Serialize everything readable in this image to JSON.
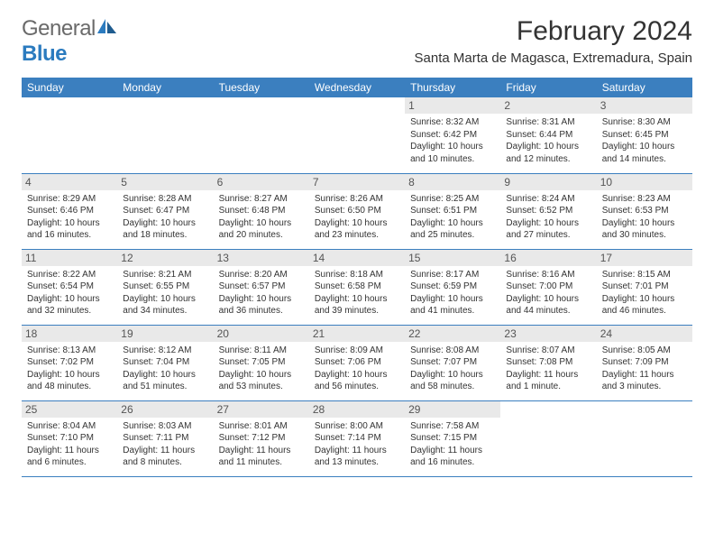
{
  "logo": {
    "part1": "General",
    "part2": "Blue"
  },
  "title": "February 2024",
  "location": "Santa Marta de Magasca, Extremadura, Spain",
  "colors": {
    "header_bg": "#3b7fbf",
    "header_text": "#ffffff",
    "daynum_bg": "#e9e9e9",
    "daynum_text": "#555555",
    "body_text": "#333333",
    "rule": "#3b7fbf"
  },
  "days_of_week": [
    "Sunday",
    "Monday",
    "Tuesday",
    "Wednesday",
    "Thursday",
    "Friday",
    "Saturday"
  ],
  "weeks": [
    [
      null,
      null,
      null,
      null,
      {
        "n": "1",
        "sr": "8:32 AM",
        "ss": "6:42 PM",
        "dl": "10 hours and 10 minutes."
      },
      {
        "n": "2",
        "sr": "8:31 AM",
        "ss": "6:44 PM",
        "dl": "10 hours and 12 minutes."
      },
      {
        "n": "3",
        "sr": "8:30 AM",
        "ss": "6:45 PM",
        "dl": "10 hours and 14 minutes."
      }
    ],
    [
      {
        "n": "4",
        "sr": "8:29 AM",
        "ss": "6:46 PM",
        "dl": "10 hours and 16 minutes."
      },
      {
        "n": "5",
        "sr": "8:28 AM",
        "ss": "6:47 PM",
        "dl": "10 hours and 18 minutes."
      },
      {
        "n": "6",
        "sr": "8:27 AM",
        "ss": "6:48 PM",
        "dl": "10 hours and 20 minutes."
      },
      {
        "n": "7",
        "sr": "8:26 AM",
        "ss": "6:50 PM",
        "dl": "10 hours and 23 minutes."
      },
      {
        "n": "8",
        "sr": "8:25 AM",
        "ss": "6:51 PM",
        "dl": "10 hours and 25 minutes."
      },
      {
        "n": "9",
        "sr": "8:24 AM",
        "ss": "6:52 PM",
        "dl": "10 hours and 27 minutes."
      },
      {
        "n": "10",
        "sr": "8:23 AM",
        "ss": "6:53 PM",
        "dl": "10 hours and 30 minutes."
      }
    ],
    [
      {
        "n": "11",
        "sr": "8:22 AM",
        "ss": "6:54 PM",
        "dl": "10 hours and 32 minutes."
      },
      {
        "n": "12",
        "sr": "8:21 AM",
        "ss": "6:55 PM",
        "dl": "10 hours and 34 minutes."
      },
      {
        "n": "13",
        "sr": "8:20 AM",
        "ss": "6:57 PM",
        "dl": "10 hours and 36 minutes."
      },
      {
        "n": "14",
        "sr": "8:18 AM",
        "ss": "6:58 PM",
        "dl": "10 hours and 39 minutes."
      },
      {
        "n": "15",
        "sr": "8:17 AM",
        "ss": "6:59 PM",
        "dl": "10 hours and 41 minutes."
      },
      {
        "n": "16",
        "sr": "8:16 AM",
        "ss": "7:00 PM",
        "dl": "10 hours and 44 minutes."
      },
      {
        "n": "17",
        "sr": "8:15 AM",
        "ss": "7:01 PM",
        "dl": "10 hours and 46 minutes."
      }
    ],
    [
      {
        "n": "18",
        "sr": "8:13 AM",
        "ss": "7:02 PM",
        "dl": "10 hours and 48 minutes."
      },
      {
        "n": "19",
        "sr": "8:12 AM",
        "ss": "7:04 PM",
        "dl": "10 hours and 51 minutes."
      },
      {
        "n": "20",
        "sr": "8:11 AM",
        "ss": "7:05 PM",
        "dl": "10 hours and 53 minutes."
      },
      {
        "n": "21",
        "sr": "8:09 AM",
        "ss": "7:06 PM",
        "dl": "10 hours and 56 minutes."
      },
      {
        "n": "22",
        "sr": "8:08 AM",
        "ss": "7:07 PM",
        "dl": "10 hours and 58 minutes."
      },
      {
        "n": "23",
        "sr": "8:07 AM",
        "ss": "7:08 PM",
        "dl": "11 hours and 1 minute."
      },
      {
        "n": "24",
        "sr": "8:05 AM",
        "ss": "7:09 PM",
        "dl": "11 hours and 3 minutes."
      }
    ],
    [
      {
        "n": "25",
        "sr": "8:04 AM",
        "ss": "7:10 PM",
        "dl": "11 hours and 6 minutes."
      },
      {
        "n": "26",
        "sr": "8:03 AM",
        "ss": "7:11 PM",
        "dl": "11 hours and 8 minutes."
      },
      {
        "n": "27",
        "sr": "8:01 AM",
        "ss": "7:12 PM",
        "dl": "11 hours and 11 minutes."
      },
      {
        "n": "28",
        "sr": "8:00 AM",
        "ss": "7:14 PM",
        "dl": "11 hours and 13 minutes."
      },
      {
        "n": "29",
        "sr": "7:58 AM",
        "ss": "7:15 PM",
        "dl": "11 hours and 16 minutes."
      },
      null,
      null
    ]
  ],
  "labels": {
    "sunrise": "Sunrise:",
    "sunset": "Sunset:",
    "daylight": "Daylight:"
  }
}
